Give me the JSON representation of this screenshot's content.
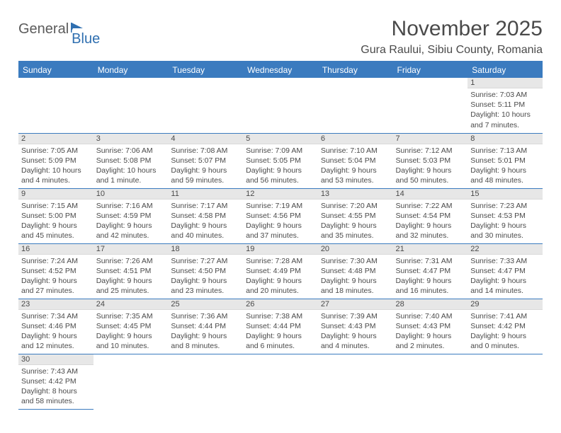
{
  "logo": {
    "text1": "General",
    "text2": "Blue"
  },
  "title": "November 2025",
  "location": "Gura Raului, Sibiu County, Romania",
  "dayHeaders": [
    "Sunday",
    "Monday",
    "Tuesday",
    "Wednesday",
    "Thursday",
    "Friday",
    "Saturday"
  ],
  "colors": {
    "headerBg": "#3b7bbf",
    "headerText": "#ffffff",
    "dayNumBg": "#e7e7e7",
    "textColor": "#4a4a4a",
    "ruleColor": "#3b7bbf"
  },
  "weeks": [
    [
      null,
      null,
      null,
      null,
      null,
      null,
      {
        "n": "1",
        "sr": "7:03 AM",
        "ss": "5:11 PM",
        "dl": "10 hours and 7 minutes."
      }
    ],
    [
      {
        "n": "2",
        "sr": "7:05 AM",
        "ss": "5:09 PM",
        "dl": "10 hours and 4 minutes."
      },
      {
        "n": "3",
        "sr": "7:06 AM",
        "ss": "5:08 PM",
        "dl": "10 hours and 1 minute."
      },
      {
        "n": "4",
        "sr": "7:08 AM",
        "ss": "5:07 PM",
        "dl": "9 hours and 59 minutes."
      },
      {
        "n": "5",
        "sr": "7:09 AM",
        "ss": "5:05 PM",
        "dl": "9 hours and 56 minutes."
      },
      {
        "n": "6",
        "sr": "7:10 AM",
        "ss": "5:04 PM",
        "dl": "9 hours and 53 minutes."
      },
      {
        "n": "7",
        "sr": "7:12 AM",
        "ss": "5:03 PM",
        "dl": "9 hours and 50 minutes."
      },
      {
        "n": "8",
        "sr": "7:13 AM",
        "ss": "5:01 PM",
        "dl": "9 hours and 48 minutes."
      }
    ],
    [
      {
        "n": "9",
        "sr": "7:15 AM",
        "ss": "5:00 PM",
        "dl": "9 hours and 45 minutes."
      },
      {
        "n": "10",
        "sr": "7:16 AM",
        "ss": "4:59 PM",
        "dl": "9 hours and 42 minutes."
      },
      {
        "n": "11",
        "sr": "7:17 AM",
        "ss": "4:58 PM",
        "dl": "9 hours and 40 minutes."
      },
      {
        "n": "12",
        "sr": "7:19 AM",
        "ss": "4:56 PM",
        "dl": "9 hours and 37 minutes."
      },
      {
        "n": "13",
        "sr": "7:20 AM",
        "ss": "4:55 PM",
        "dl": "9 hours and 35 minutes."
      },
      {
        "n": "14",
        "sr": "7:22 AM",
        "ss": "4:54 PM",
        "dl": "9 hours and 32 minutes."
      },
      {
        "n": "15",
        "sr": "7:23 AM",
        "ss": "4:53 PM",
        "dl": "9 hours and 30 minutes."
      }
    ],
    [
      {
        "n": "16",
        "sr": "7:24 AM",
        "ss": "4:52 PM",
        "dl": "9 hours and 27 minutes."
      },
      {
        "n": "17",
        "sr": "7:26 AM",
        "ss": "4:51 PM",
        "dl": "9 hours and 25 minutes."
      },
      {
        "n": "18",
        "sr": "7:27 AM",
        "ss": "4:50 PM",
        "dl": "9 hours and 23 minutes."
      },
      {
        "n": "19",
        "sr": "7:28 AM",
        "ss": "4:49 PM",
        "dl": "9 hours and 20 minutes."
      },
      {
        "n": "20",
        "sr": "7:30 AM",
        "ss": "4:48 PM",
        "dl": "9 hours and 18 minutes."
      },
      {
        "n": "21",
        "sr": "7:31 AM",
        "ss": "4:47 PM",
        "dl": "9 hours and 16 minutes."
      },
      {
        "n": "22",
        "sr": "7:33 AM",
        "ss": "4:47 PM",
        "dl": "9 hours and 14 minutes."
      }
    ],
    [
      {
        "n": "23",
        "sr": "7:34 AM",
        "ss": "4:46 PM",
        "dl": "9 hours and 12 minutes."
      },
      {
        "n": "24",
        "sr": "7:35 AM",
        "ss": "4:45 PM",
        "dl": "9 hours and 10 minutes."
      },
      {
        "n": "25",
        "sr": "7:36 AM",
        "ss": "4:44 PM",
        "dl": "9 hours and 8 minutes."
      },
      {
        "n": "26",
        "sr": "7:38 AM",
        "ss": "4:44 PM",
        "dl": "9 hours and 6 minutes."
      },
      {
        "n": "27",
        "sr": "7:39 AM",
        "ss": "4:43 PM",
        "dl": "9 hours and 4 minutes."
      },
      {
        "n": "28",
        "sr": "7:40 AM",
        "ss": "4:43 PM",
        "dl": "9 hours and 2 minutes."
      },
      {
        "n": "29",
        "sr": "7:41 AM",
        "ss": "4:42 PM",
        "dl": "9 hours and 0 minutes."
      }
    ],
    [
      {
        "n": "30",
        "sr": "7:43 AM",
        "ss": "4:42 PM",
        "dl": "8 hours and 58 minutes."
      },
      null,
      null,
      null,
      null,
      null,
      null
    ]
  ],
  "labels": {
    "sunrise": "Sunrise: ",
    "sunset": "Sunset: ",
    "daylight": "Daylight: "
  }
}
